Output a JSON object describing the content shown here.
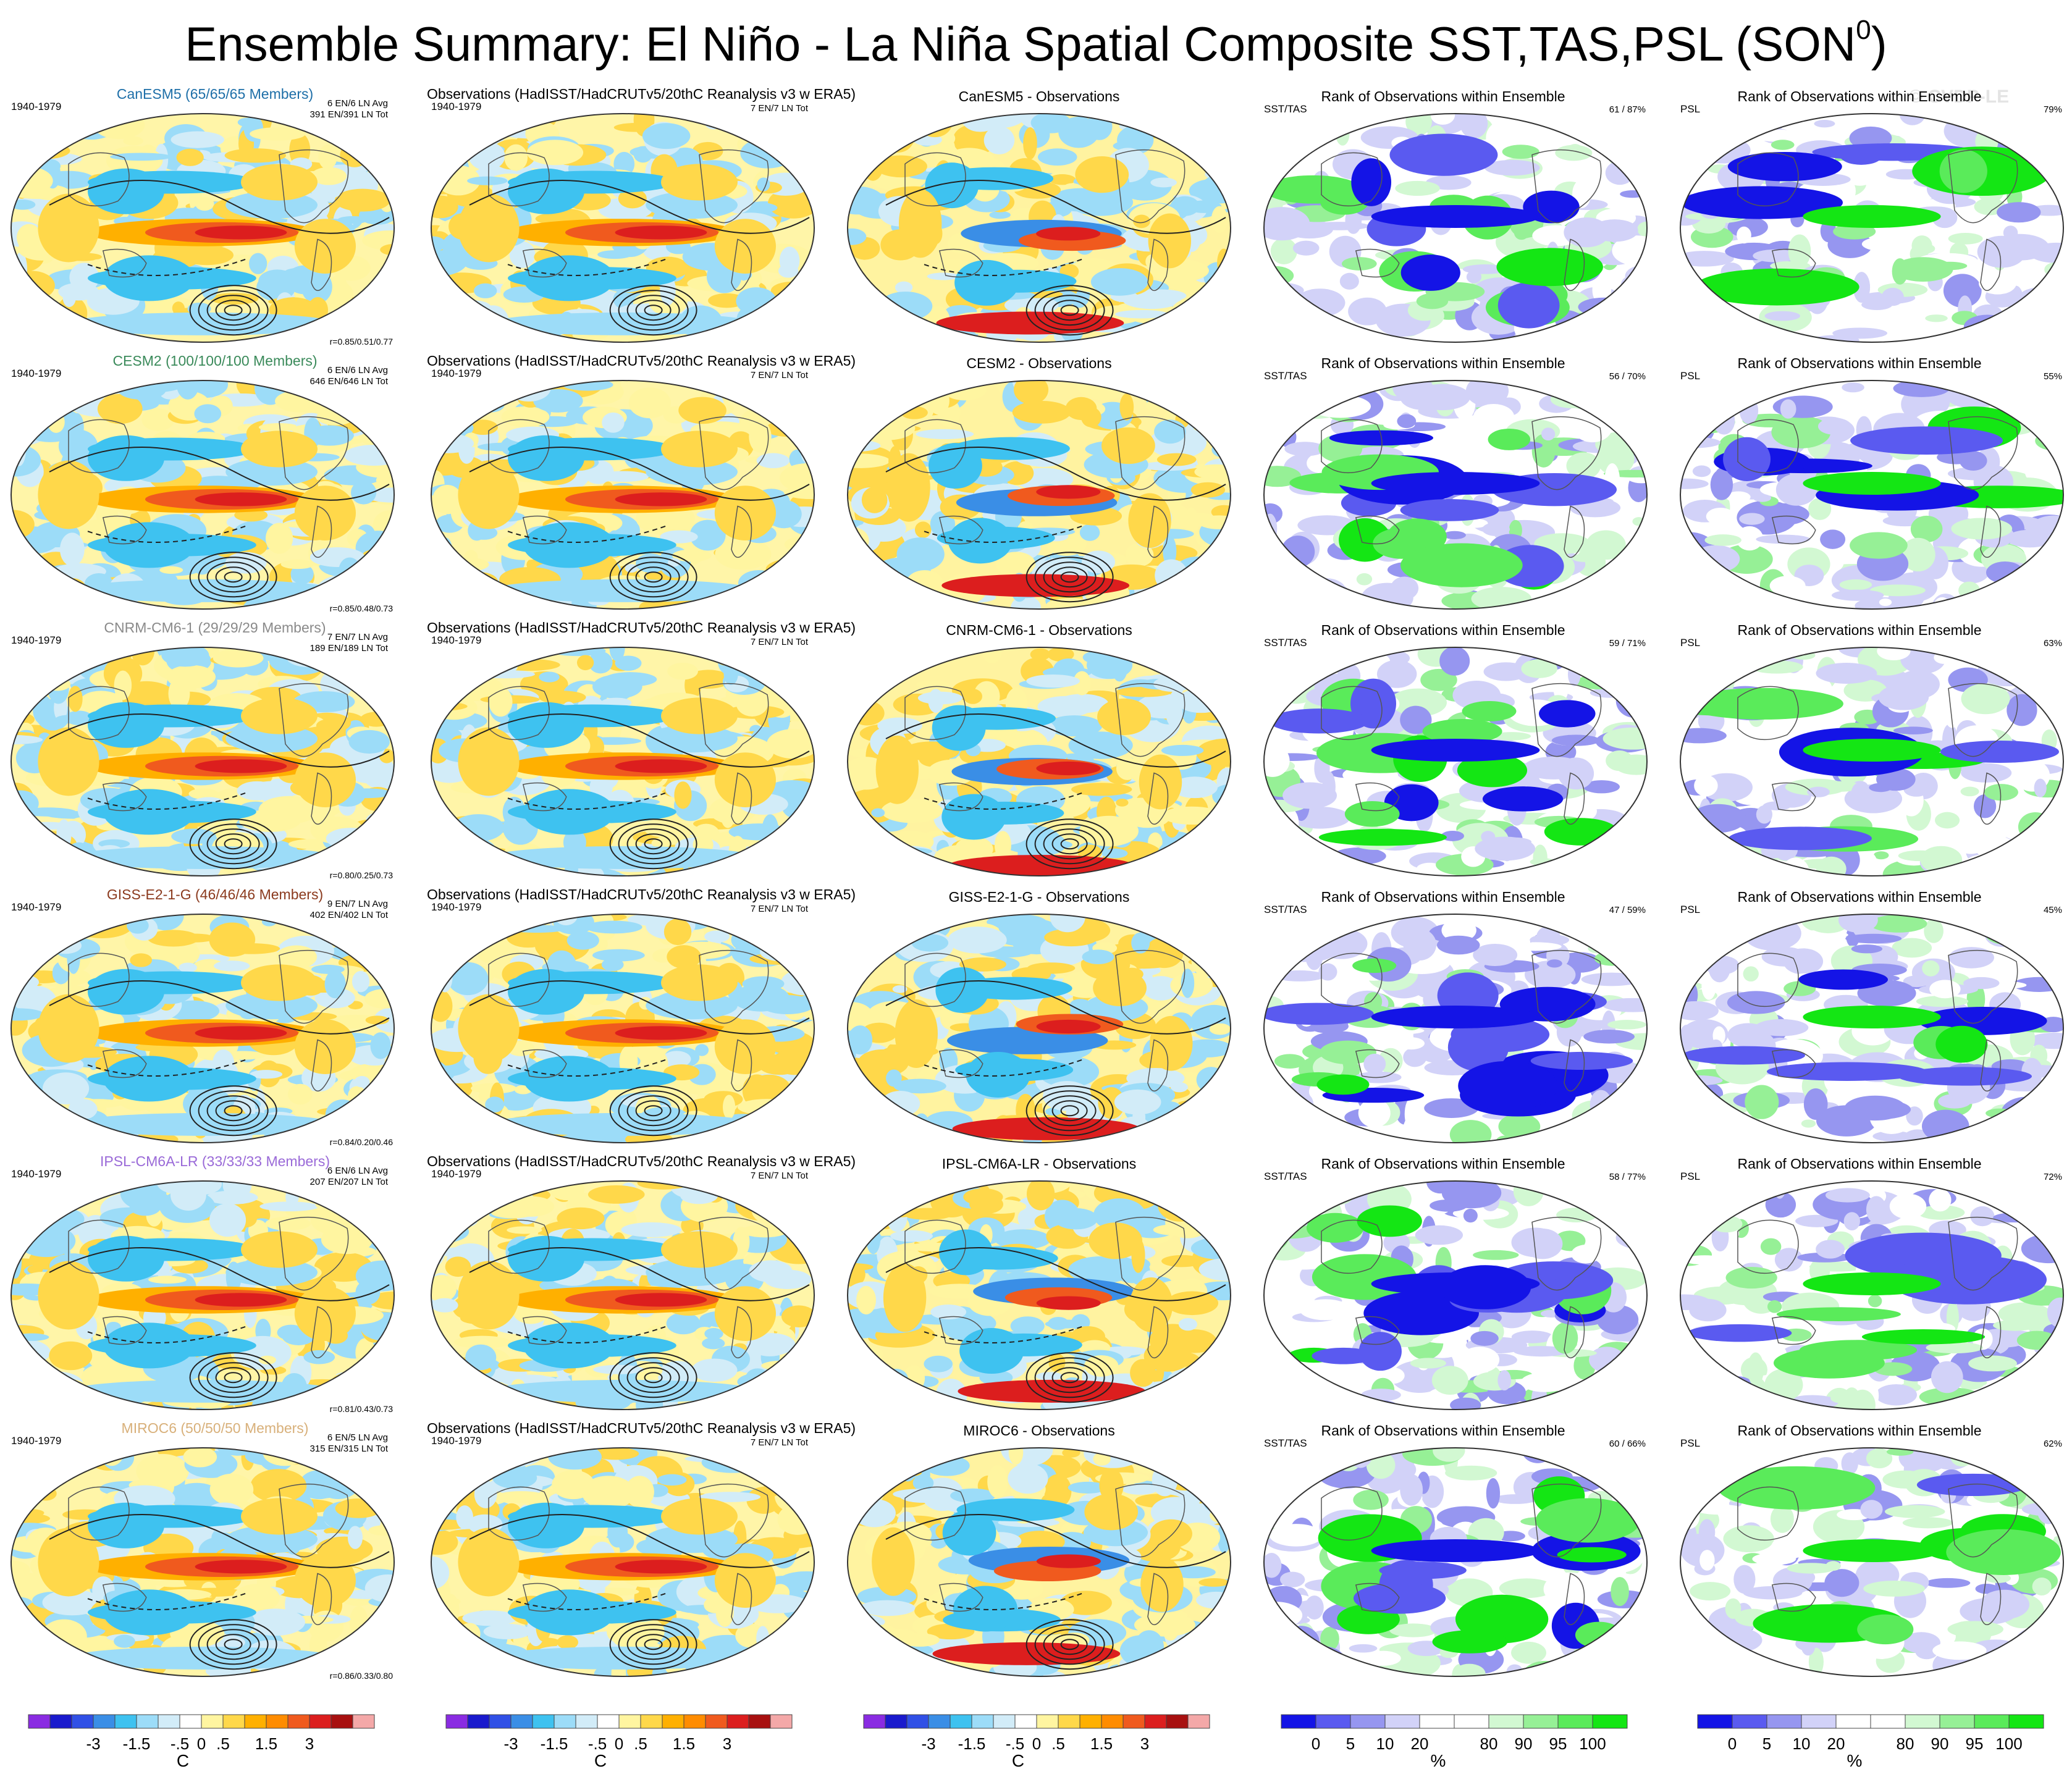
{
  "figure": {
    "title_main": "Ensemble Summary: El Niño - La Niña Spatial Composite SST,TAS,PSL (SON",
    "title_sup": "0",
    "title_close": ")",
    "watermark": "© CVDP-LE"
  },
  "chart_data": {
    "type": "heatmap",
    "description_fields": [
      "ensemble-mean composite",
      "observations composite",
      "difference",
      "rank SST/TAS",
      "rank PSL"
    ],
    "colorbar_temperature": {
      "colors": [
        "#8a2be2",
        "#1a1acd",
        "#3050e6",
        "#3a8ee6",
        "#3ec2f0",
        "#9cdcf8",
        "#d2ecf8",
        "#ffffff",
        "#fff5a0",
        "#ffd84a",
        "#ffb000",
        "#ff8c00",
        "#f05a1e",
        "#dc1e1e",
        "#a81010",
        "#f4a8a8"
      ],
      "tick_labels": [
        "-3",
        "-1.5",
        "-.5",
        "0",
        ".5",
        "1.5",
        "3"
      ],
      "unit": "C"
    },
    "colorbar_rank": {
      "colors": [
        "#1414e6",
        "#5a5af0",
        "#9696f0",
        "#d2d2f8",
        "#ffffff",
        "#ffffff",
        "#d2f8d2",
        "#96f096",
        "#5aeb5a",
        "#14e614"
      ],
      "tick_labels": [
        "0",
        "5",
        "10",
        "20",
        "80",
        "90",
        "95",
        "100"
      ],
      "unit": "%"
    },
    "rows": [
      {
        "model": "CanESM5",
        "model_title": "CanESM5 (65/65/65 Members)",
        "model_color": "#1e6fa8",
        "period": "1940-1979",
        "model_stat1": "6 EN/6 LN Avg",
        "model_stat2": "391 EN/391 LN Tot",
        "obs_title": "Observations (HadISST/HadCRUTv5/20thC Reanalysis v3 w ERA5)",
        "obs_stat": "7 EN/7 LN Tot",
        "diff_title": "CanESM5 - Observations",
        "rank_title": "Rank of Observations within Ensemble",
        "rank_label": "SST/TAS",
        "rank_stat": "61 /  87%",
        "psl_label": "PSL",
        "psl_stat": "79%",
        "correlation": "r=0.85/0.51/0.77"
      },
      {
        "model": "CESM2",
        "model_title": "CESM2 (100/100/100 Members)",
        "model_color": "#3a8a5a",
        "period": "1940-1979",
        "model_stat1": "6 EN/6 LN Avg",
        "model_stat2": "646 EN/646 LN Tot",
        "obs_title": "Observations (HadISST/HadCRUTv5/20thC Reanalysis v3 w ERA5)",
        "obs_stat": "7 EN/7 LN Tot",
        "diff_title": "CESM2 - Observations",
        "rank_title": "Rank of Observations within Ensemble",
        "rank_label": "SST/TAS",
        "rank_stat": "56 /  70%",
        "psl_label": "PSL",
        "psl_stat": "55%",
        "correlation": "r=0.85/0.48/0.73"
      },
      {
        "model": "CNRM-CM6-1",
        "model_title": "CNRM-CM6-1 (29/29/29 Members)",
        "model_color": "#8a8a8a",
        "period": "1940-1979",
        "model_stat1": "7 EN/7 LN Avg",
        "model_stat2": "189 EN/189 LN Tot",
        "obs_title": "Observations (HadISST/HadCRUTv5/20thC Reanalysis v3 w ERA5)",
        "obs_stat": "7 EN/7 LN Tot",
        "diff_title": "CNRM-CM6-1 - Observations",
        "rank_title": "Rank of Observations within Ensemble",
        "rank_label": "SST/TAS",
        "rank_stat": "59 /  71%",
        "psl_label": "PSL",
        "psl_stat": "63%",
        "correlation": "r=0.80/0.25/0.73"
      },
      {
        "model": "GISS-E2-1-G",
        "model_title": "GISS-E2-1-G (46/46/46 Members)",
        "model_color": "#8b3a1e",
        "period": "1940-1979",
        "model_stat1": "9 EN/7 LN Avg",
        "model_stat2": "402 EN/402 LN Tot",
        "obs_title": "Observations (HadISST/HadCRUTv5/20thC Reanalysis v3 w ERA5)",
        "obs_stat": "7 EN/7 LN Tot",
        "diff_title": "GISS-E2-1-G - Observations",
        "rank_title": "Rank of Observations within Ensemble",
        "rank_label": "SST/TAS",
        "rank_stat": "47 /  59%",
        "psl_label": "PSL",
        "psl_stat": "45%",
        "correlation": "r=0.84/0.20/0.46"
      },
      {
        "model": "IPSL-CM6A-LR",
        "model_title": "IPSL-CM6A-LR (33/33/33 Members)",
        "model_color": "#9a6ad8",
        "period": "1940-1979",
        "model_stat1": "6 EN/6 LN Avg",
        "model_stat2": "207 EN/207 LN Tot",
        "obs_title": "Observations (HadISST/HadCRUTv5/20thC Reanalysis v3 w ERA5)",
        "obs_stat": "7 EN/7 LN Tot",
        "diff_title": "IPSL-CM6A-LR - Observations",
        "rank_title": "Rank of Observations within Ensemble",
        "rank_label": "SST/TAS",
        "rank_stat": "58 /  77%",
        "psl_label": "PSL",
        "psl_stat": "72%",
        "correlation": "r=0.81/0.43/0.73"
      },
      {
        "model": "MIROC6",
        "model_title": "MIROC6 (50/50/50 Members)",
        "model_color": "#d8b07a",
        "period": "1940-1979",
        "model_stat1": "6 EN/5 LN Avg",
        "model_stat2": "315 EN/315 LN Tot",
        "obs_title": "Observations (HadISST/HadCRUTv5/20thC Reanalysis v3 w ERA5)",
        "obs_stat": "7 EN/7 LN Tot",
        "diff_title": "MIROC6 - Observations",
        "rank_title": "Rank of Observations within Ensemble",
        "rank_label": "SST/TAS",
        "rank_stat": "60 /  66%",
        "psl_label": "PSL",
        "psl_stat": "62%",
        "correlation": "r=0.86/0.33/0.80"
      }
    ]
  }
}
